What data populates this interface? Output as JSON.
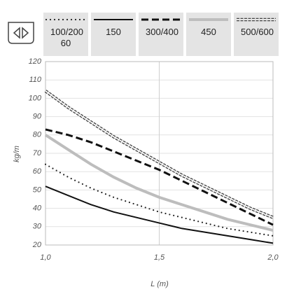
{
  "chart_data": {
    "type": "line",
    "x_label": "L (m)",
    "y_label": "kg/m",
    "x": [
      1.0,
      1.1,
      1.2,
      1.3,
      1.4,
      1.5,
      1.6,
      1.7,
      1.8,
      1.9,
      2.0
    ],
    "series": [
      {
        "name": "100/200 60",
        "color": "#222222",
        "style": "dotted",
        "values": [
          64,
          57,
          51,
          46,
          42,
          38,
          35,
          32,
          29,
          27,
          25
        ]
      },
      {
        "name": "150",
        "color": "#111111",
        "style": "solid",
        "values": [
          52,
          47,
          42,
          38,
          35,
          32,
          29,
          27,
          25,
          23,
          21
        ]
      },
      {
        "name": "300/400",
        "color": "#111111",
        "style": "dashed",
        "values": [
          83,
          80,
          76,
          71,
          66,
          61,
          55,
          49,
          43,
          37,
          31
        ]
      },
      {
        "name": "450",
        "color": "#bdbdbd",
        "style": "thick",
        "values": [
          80,
          72,
          64,
          57,
          51,
          46,
          42,
          38,
          34,
          31,
          28
        ]
      },
      {
        "name": "500/600",
        "color": "#444444",
        "style": "diamond",
        "values": [
          104,
          95,
          87,
          79,
          72,
          65,
          58,
          52,
          46,
          40,
          35
        ]
      }
    ],
    "xlim": [
      1.0,
      2.0
    ],
    "xticks": [
      {
        "value": 1.0,
        "label": "1,0"
      },
      {
        "value": 1.5,
        "label": "1,5"
      },
      {
        "value": 2.0,
        "label": "2,0"
      }
    ],
    "ylim": [
      20,
      120
    ],
    "yticks": [
      20,
      30,
      40,
      50,
      60,
      70,
      80,
      90,
      100,
      110,
      120
    ],
    "grid": true
  }
}
